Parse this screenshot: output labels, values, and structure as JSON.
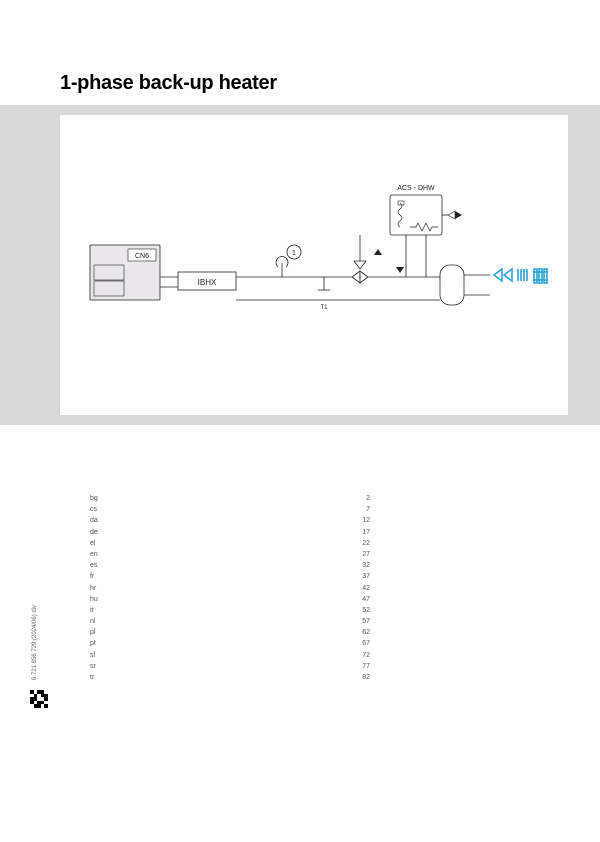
{
  "title": "1-phase back-up heater",
  "side_ref": "6 721 856 729 (2024/06) div",
  "diagram": {
    "background": "#d9d9d9",
    "inner_background": "#ffffff",
    "stroke": "#222222",
    "accent": "#2aa3d4",
    "unit_label": "CN6",
    "heater_label": "IBHX",
    "tank_label": "ACS - DHW",
    "sensor_label": "T1",
    "circle_label": "1"
  },
  "toc": [
    {
      "code": "bg",
      "page": "2"
    },
    {
      "code": "cs",
      "page": "7"
    },
    {
      "code": "da",
      "page": "12"
    },
    {
      "code": "de",
      "page": "17"
    },
    {
      "code": "el",
      "page": "22"
    },
    {
      "code": "en",
      "page": "27"
    },
    {
      "code": "es",
      "page": "32"
    },
    {
      "code": "fr",
      "page": "37"
    },
    {
      "code": "hr",
      "page": "42"
    },
    {
      "code": "hu",
      "page": "47"
    },
    {
      "code": "it",
      "page": "52"
    },
    {
      "code": "nl",
      "page": "57"
    },
    {
      "code": "pl",
      "page": "62"
    },
    {
      "code": "pt",
      "page": "67"
    },
    {
      "code": "sl",
      "page": "72"
    },
    {
      "code": "sr",
      "page": "77"
    },
    {
      "code": "tr",
      "page": "82"
    }
  ]
}
